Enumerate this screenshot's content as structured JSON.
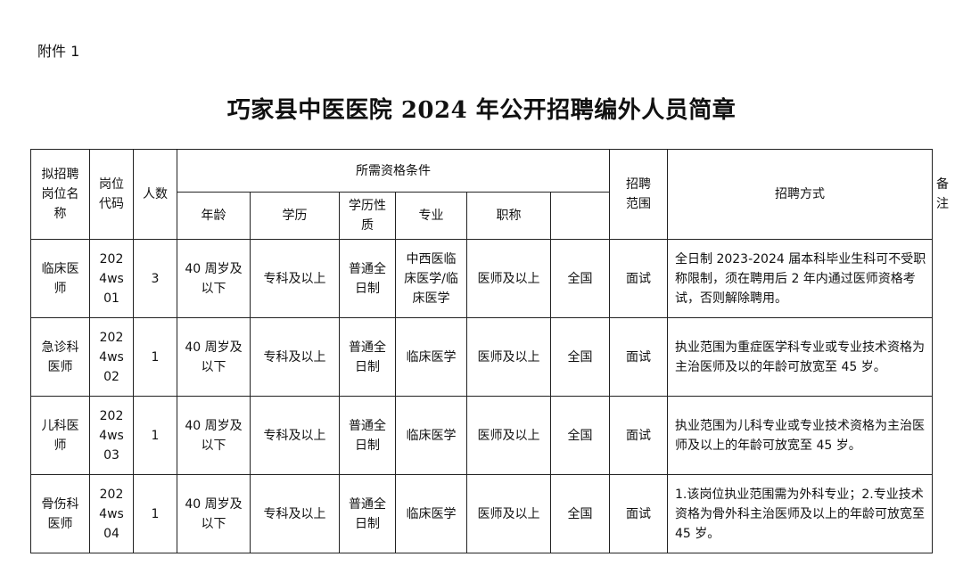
{
  "attachment_label": "附件 1",
  "title": "巧家县中医医院 2024 年公开招聘编外人员简章",
  "headers": {
    "position": "拟招聘岗位名称",
    "code": "岗位代码",
    "count": "人数",
    "qualifications": "所需资格条件",
    "age": "年龄",
    "education": "学历",
    "education_type": "学历性质",
    "major": "专业",
    "title": "职称",
    "scope": "招聘范围",
    "method": "招聘方式",
    "remarks": "备注"
  },
  "rows": [
    {
      "position": "临床医师",
      "code": "2024ws01",
      "count": "3",
      "age": "40 周岁及以下",
      "education": "专科及以上",
      "education_type": "普通全日制",
      "major": "中西医临床医学/临床医学",
      "title": "医师及以上",
      "scope": "全国",
      "method": "面试",
      "remarks": "全日制 2023-2024 届本科毕业生科可不受职称限制，须在聘用后 2 年内通过医师资格考试，否则解除聘用。"
    },
    {
      "position": "急诊科医师",
      "code": "2024ws02",
      "count": "1",
      "age": "40 周岁及以下",
      "education": "专科及以上",
      "education_type": "普通全日制",
      "major": "临床医学",
      "title": "医师及以上",
      "scope": "全国",
      "method": "面试",
      "remarks": "执业范围为重症医学科专业或专业技术资格为主治医师及以的年龄可放宽至 45 岁。"
    },
    {
      "position": "儿科医师",
      "code": "2024ws03",
      "count": "1",
      "age": "40 周岁及以下",
      "education": "专科及以上",
      "education_type": "普通全日制",
      "major": "临床医学",
      "title": "医师及以上",
      "scope": "全国",
      "method": "面试",
      "remarks": "执业范围为儿科专业或专业技术资格为主治医师及以上的年龄可放宽至 45 岁。"
    },
    {
      "position": "骨伤科医师",
      "code": "2024ws04",
      "count": "1",
      "age": "40 周岁及以下",
      "education": "专科及以上",
      "education_type": "普通全日制",
      "major": "临床医学",
      "title": "医师及以上",
      "scope": "全国",
      "method": "面试",
      "remarks": "1.该岗位执业范围需为外科专业；2.专业技术资格为骨外科主治医师及以上的年龄可放宽至 45 岁。"
    }
  ]
}
